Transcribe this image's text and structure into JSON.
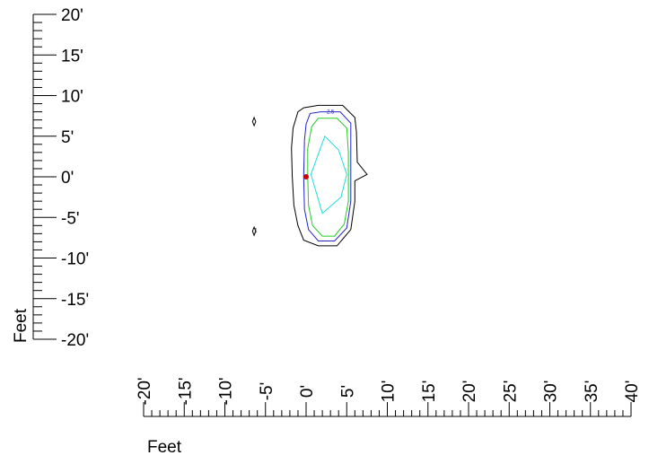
{
  "chart_data": {
    "type": "contour",
    "title": "",
    "xlabel": "Feet",
    "ylabel": "Feet",
    "xlim": [
      -20,
      40
    ],
    "ylim": [
      -20,
      20
    ],
    "x_ticks": [
      "-20'",
      "-15'",
      "-10'",
      "-5'",
      "0'",
      "5'",
      "10'",
      "15'",
      "20'",
      "25'",
      "30'",
      "35'",
      "40'"
    ],
    "x_tick_values": [
      -20,
      -15,
      -10,
      -5,
      0,
      5,
      10,
      15,
      20,
      25,
      30,
      35,
      40
    ],
    "y_ticks": [
      "20'",
      "15'",
      "10'",
      "5'",
      "0'",
      "-5'",
      "-10'",
      "-15'",
      "-20'"
    ],
    "y_tick_values": [
      20,
      15,
      10,
      5,
      0,
      -5,
      -10,
      -15,
      -20
    ],
    "minor_tick_step": 1,
    "contour_labels": [
      {
        "text": "2.5",
        "x": 3.0,
        "y": 7.8,
        "color": "#2222cc"
      },
      {
        "text": "1",
        "x": -6.2,
        "y": -6.8,
        "color": "#000000"
      }
    ],
    "series": [
      {
        "color": "#000000",
        "closed": true,
        "points": [
          [
            -0.3,
            8.5
          ],
          [
            -1.0,
            8.0
          ],
          [
            -1.6,
            6.0
          ],
          [
            -1.8,
            3.5
          ],
          [
            -1.7,
            0
          ],
          [
            -1.5,
            -3.5
          ],
          [
            -1.0,
            -6.0
          ],
          [
            -0.3,
            -7.8
          ],
          [
            1.5,
            -8.5
          ],
          [
            3.8,
            -8.5
          ],
          [
            5.5,
            -6.5
          ],
          [
            6.0,
            -3.0
          ],
          [
            6.0,
            -0.5
          ],
          [
            7.5,
            0.3
          ],
          [
            6.3,
            1.8
          ],
          [
            6.2,
            5.5
          ],
          [
            6.0,
            7.3
          ],
          [
            4.5,
            8.8
          ],
          [
            1.5,
            8.8
          ]
        ]
      },
      {
        "color": "#2222cc",
        "closed": true,
        "points": [
          [
            0.5,
            7.8
          ],
          [
            0,
            6.5
          ],
          [
            -0.2,
            4.5
          ],
          [
            -0.3,
            0
          ],
          [
            -0.2,
            -4.0
          ],
          [
            0.3,
            -6.5
          ],
          [
            1.5,
            -7.9
          ],
          [
            3.5,
            -7.9
          ],
          [
            5.0,
            -6.3
          ],
          [
            5.5,
            -3.0
          ],
          [
            5.5,
            3.0
          ],
          [
            5.5,
            6.6
          ],
          [
            4.2,
            8.0
          ],
          [
            1.8,
            8.0
          ]
        ]
      },
      {
        "color": "#22cc22",
        "closed": true,
        "points": [
          [
            1.5,
            7.2
          ],
          [
            0.7,
            6.2
          ],
          [
            0.2,
            3.5
          ],
          [
            0.2,
            0
          ],
          [
            0.3,
            -3.5
          ],
          [
            0.8,
            -6.0
          ],
          [
            2.0,
            -7.3
          ],
          [
            3.5,
            -7.3
          ],
          [
            4.7,
            -5.8
          ],
          [
            5.2,
            -3.0
          ],
          [
            5.2,
            3.0
          ],
          [
            5.0,
            6.0
          ],
          [
            3.8,
            7.2
          ]
        ]
      },
      {
        "color": "#22dddd",
        "closed": true,
        "points": [
          [
            2.3,
            5.0
          ],
          [
            0.6,
            0.3
          ],
          [
            2.0,
            -4.5
          ],
          [
            4.3,
            -2.5
          ],
          [
            5.0,
            0.3
          ],
          [
            4.0,
            3.3
          ]
        ]
      },
      {
        "color": "#000000",
        "closed": true,
        "points": [
          [
            -6.4,
            7.3
          ],
          [
            -6.2,
            6.8
          ],
          [
            -6.4,
            6.3
          ],
          [
            -6.6,
            6.8
          ]
        ]
      },
      {
        "color": "#000000",
        "closed": true,
        "points": [
          [
            -6.4,
            -6.2
          ],
          [
            -6.2,
            -6.7
          ],
          [
            -6.4,
            -7.2
          ],
          [
            -6.6,
            -6.7
          ]
        ]
      }
    ],
    "marker": {
      "x": 0,
      "y": 0,
      "color": "#cc0000"
    }
  }
}
